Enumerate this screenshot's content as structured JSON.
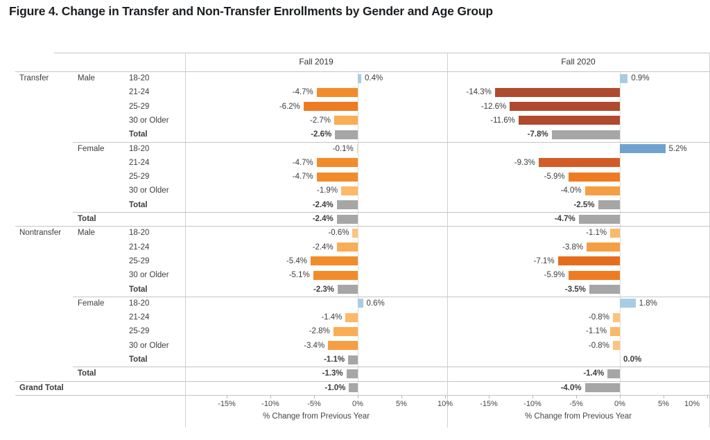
{
  "title": "Figure 4. Change in Transfer and Non-Transfer Enrollments by Gender and Age Group",
  "chart_data": {
    "type": "bar",
    "orientation": "horizontal",
    "xlabel": "% Change from Previous Year",
    "x_ticks": [
      "-15%",
      "-10%",
      "-5%",
      "0%",
      "5%",
      "10%"
    ],
    "x_tick_values": [
      -15,
      -10,
      -5,
      0,
      5,
      10
    ],
    "xlim": [
      -20,
      10.3
    ],
    "value_suffix": "%",
    "panels": [
      {
        "key": "fall2019",
        "label": "Fall 2019"
      },
      {
        "key": "fall2020",
        "label": "Fall 2020"
      }
    ],
    "rows": [
      {
        "group": "Transfer",
        "gender": "Male",
        "age": "18-20",
        "values": [
          0.4,
          0.9
        ],
        "total": false,
        "sep": "none"
      },
      {
        "group": "",
        "gender": "",
        "age": "21-24",
        "values": [
          -4.7,
          -14.3
        ],
        "total": false,
        "sep": "none"
      },
      {
        "group": "",
        "gender": "",
        "age": "25-29",
        "values": [
          -6.2,
          -12.6
        ],
        "total": false,
        "sep": "none"
      },
      {
        "group": "",
        "gender": "",
        "age": "30 or Older",
        "values": [
          -2.7,
          -11.6
        ],
        "total": false,
        "sep": "none"
      },
      {
        "group": "",
        "gender": "",
        "age": "Total",
        "values": [
          -2.6,
          -7.8
        ],
        "total": true,
        "sep": "none"
      },
      {
        "group": "",
        "gender": "Female",
        "age": "18-20",
        "values": [
          -0.1,
          5.2
        ],
        "total": false,
        "sep": "gender"
      },
      {
        "group": "",
        "gender": "",
        "age": "21-24",
        "values": [
          -4.7,
          -9.3
        ],
        "total": false,
        "sep": "none"
      },
      {
        "group": "",
        "gender": "",
        "age": "25-29",
        "values": [
          -4.7,
          -5.9
        ],
        "total": false,
        "sep": "none"
      },
      {
        "group": "",
        "gender": "",
        "age": "30 or Older",
        "values": [
          -1.9,
          -4.0
        ],
        "total": false,
        "sep": "none"
      },
      {
        "group": "",
        "gender": "",
        "age": "Total",
        "values": [
          -2.4,
          -2.5
        ],
        "total": true,
        "sep": "none"
      },
      {
        "group": "",
        "gender": "Total",
        "age": "",
        "values": [
          -2.4,
          -4.7
        ],
        "total": true,
        "sep": "gender"
      },
      {
        "group": "Nontransfer",
        "gender": "Male",
        "age": "18-20",
        "values": [
          -0.6,
          -1.1
        ],
        "total": false,
        "sep": "group"
      },
      {
        "group": "",
        "gender": "",
        "age": "21-24",
        "values": [
          -2.4,
          -3.8
        ],
        "total": false,
        "sep": "none"
      },
      {
        "group": "",
        "gender": "",
        "age": "25-29",
        "values": [
          -5.4,
          -7.1
        ],
        "total": false,
        "sep": "none"
      },
      {
        "group": "",
        "gender": "",
        "age": "30 or Older",
        "values": [
          -5.1,
          -5.9
        ],
        "total": false,
        "sep": "none"
      },
      {
        "group": "",
        "gender": "",
        "age": "Total",
        "values": [
          -2.3,
          -3.5
        ],
        "total": true,
        "sep": "none"
      },
      {
        "group": "",
        "gender": "Female",
        "age": "18-20",
        "values": [
          0.6,
          1.8
        ],
        "total": false,
        "sep": "gender"
      },
      {
        "group": "",
        "gender": "",
        "age": "21-24",
        "values": [
          -1.4,
          -0.8
        ],
        "total": false,
        "sep": "none"
      },
      {
        "group": "",
        "gender": "",
        "age": "25-29",
        "values": [
          -2.8,
          -1.1
        ],
        "total": false,
        "sep": "none"
      },
      {
        "group": "",
        "gender": "",
        "age": "30 or Older",
        "values": [
          -3.4,
          -0.8
        ],
        "total": false,
        "sep": "none"
      },
      {
        "group": "",
        "gender": "",
        "age": "Total",
        "values": [
          -1.1,
          0.0
        ],
        "total": true,
        "sep": "none"
      },
      {
        "group": "",
        "gender": "Total",
        "age": "",
        "values": [
          -1.3,
          -1.4
        ],
        "total": true,
        "sep": "gender"
      },
      {
        "group": "Grand Total",
        "gender": "",
        "age": "",
        "values": [
          -1.0,
          -4.0
        ],
        "total": true,
        "sep": "group"
      }
    ],
    "palette": {
      "total_gray": "#a6a6a6",
      "pos_strong_min": 3,
      "pos_strong_blue": "#6fa3cf",
      "pos_light_blue": "#a8cde2",
      "neg_stops": [
        {
          "min_abs": 10.0,
          "color": "#b04a2e"
        },
        {
          "min_abs": 8.0,
          "color": "#d25c28"
        },
        {
          "min_abs": 6.5,
          "color": "#e56d1e"
        },
        {
          "min_abs": 5.5,
          "color": "#ee7b22"
        },
        {
          "min_abs": 4.5,
          "color": "#f28c2b"
        },
        {
          "min_abs": 3.0,
          "color": "#f69e44"
        },
        {
          "min_abs": 2.0,
          "color": "#f9ad55"
        },
        {
          "min_abs": 1.0,
          "color": "#fbb969"
        },
        {
          "min_abs": 0.4,
          "color": "#fcc47e"
        },
        {
          "min_abs": 0.0,
          "color": "#fdd49e"
        }
      ],
      "grid_line": "#c4c4c4",
      "zero_line": "#dcdcdc",
      "panel_border": "#cfcfcf"
    }
  }
}
